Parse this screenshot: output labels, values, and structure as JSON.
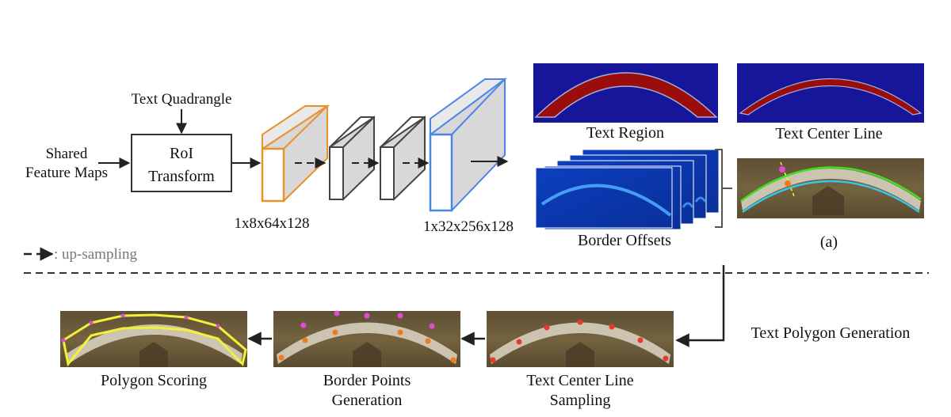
{
  "pipeline": {
    "shared_feature_maps": [
      "Shared",
      "Feature Maps"
    ],
    "text_quadrangle": "Text Quadrangle",
    "roi_transform": [
      "RoI",
      "Transform"
    ],
    "dim_small": "1x8x64x128",
    "dim_large": "1x32x256x128",
    "legend_text": ": up-sampling"
  },
  "outputs": {
    "text_region": "Text Region",
    "text_center_line": "Text Center Line",
    "border_offsets": "Border Offsets",
    "panel_a": "(a)"
  },
  "generation": {
    "title": "Text Polygon Generation",
    "polygon_scoring": "Polygon Scoring",
    "border_points": [
      "Border Points",
      "Generation"
    ],
    "center_line_sampling": [
      "Text Center Line",
      "Sampling"
    ]
  },
  "colors": {
    "orange_block": "#e8912d",
    "blue_block": "#4a86e8",
    "map_background": "#17169a",
    "map_region": "#9b0c0c",
    "photo_wall": "#6b5a3c",
    "green_border": "#3fe01f",
    "cyan_border": "#36c6e8",
    "polygon_yellow": "#f3f03a"
  }
}
